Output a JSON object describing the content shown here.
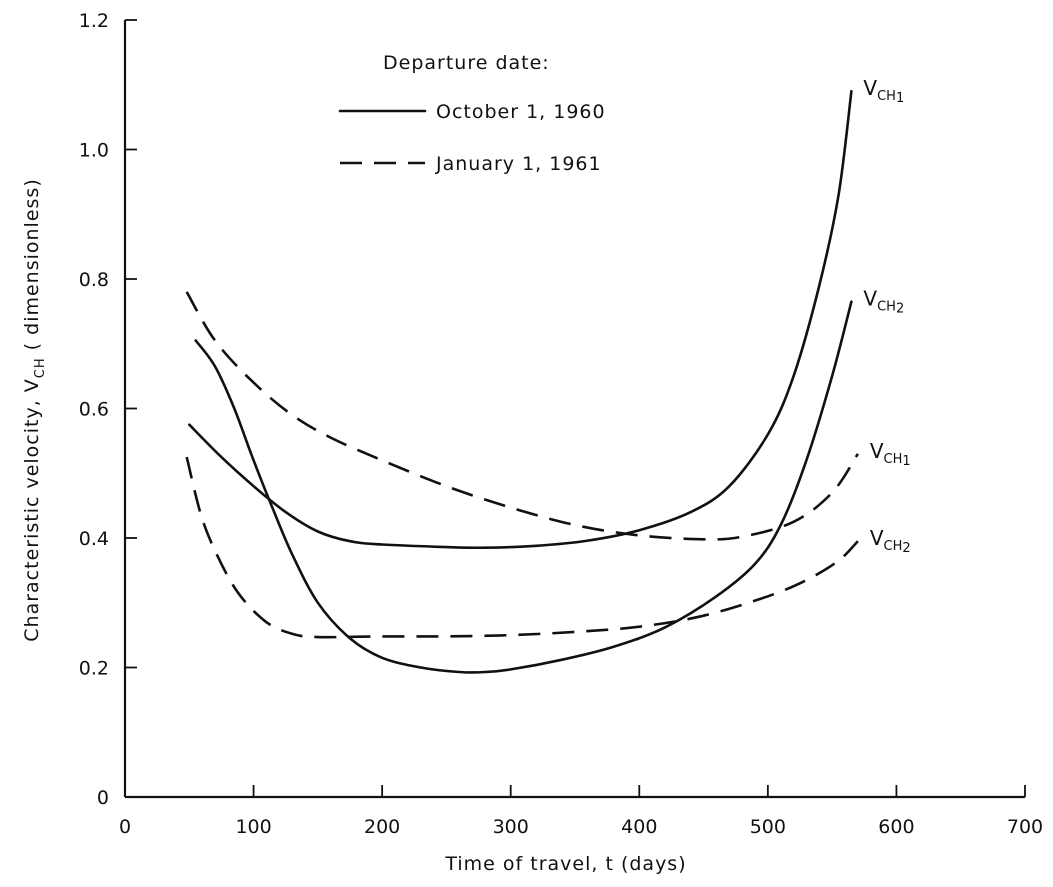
{
  "chart_data": {
    "type": "line",
    "xlabel": "Time of travel, t (days)",
    "ylabel": "Characteristic velocity, V",
    "ylabel_sub": "CH",
    "ylabel_suffix": " ( dimensionless)",
    "xlim": [
      0,
      700
    ],
    "ylim": [
      0,
      1.2
    ],
    "x_ticks": [
      0,
      100,
      200,
      300,
      400,
      500,
      600,
      700
    ],
    "x_tick_labels": [
      "0",
      "100",
      "200",
      "300",
      "400",
      "500",
      "600",
      "700"
    ],
    "y_ticks": [
      0,
      0.2,
      0.4,
      0.6,
      0.8,
      1.0,
      1.2
    ],
    "y_tick_labels": [
      "0",
      "0.2",
      "0.4",
      "0.6",
      "0.8",
      "1.0",
      "1.2"
    ],
    "grid": false,
    "legend": {
      "title": "Departure date:",
      "placement": "top-left",
      "entries": [
        {
          "label": "October 1, 1960",
          "style": "solid"
        },
        {
          "label": "January 1, 1961",
          "style": "dashed"
        }
      ]
    },
    "series": [
      {
        "legend": "October 1, 1960",
        "style": "solid",
        "label": "V",
        "label_sub": "CH",
        "label_subsub": "1",
        "points": [
          [
            50,
            0.575
          ],
          [
            75,
            0.525
          ],
          [
            100,
            0.48
          ],
          [
            125,
            0.44
          ],
          [
            150,
            0.41
          ],
          [
            175,
            0.395
          ],
          [
            200,
            0.39
          ],
          [
            250,
            0.386
          ],
          [
            280,
            0.385
          ],
          [
            320,
            0.388
          ],
          [
            360,
            0.396
          ],
          [
            400,
            0.412
          ],
          [
            440,
            0.44
          ],
          [
            470,
            0.48
          ],
          [
            500,
            0.56
          ],
          [
            520,
            0.65
          ],
          [
            540,
            0.79
          ],
          [
            555,
            0.93
          ],
          [
            565,
            1.09
          ]
        ]
      },
      {
        "legend": "October 1, 1960",
        "style": "solid",
        "label": "V",
        "label_sub": "CH",
        "label_subsub": "2",
        "points": [
          [
            55,
            0.705
          ],
          [
            70,
            0.665
          ],
          [
            85,
            0.6
          ],
          [
            100,
            0.52
          ],
          [
            115,
            0.445
          ],
          [
            130,
            0.375
          ],
          [
            150,
            0.3
          ],
          [
            175,
            0.245
          ],
          [
            200,
            0.215
          ],
          [
            230,
            0.2
          ],
          [
            260,
            0.193
          ],
          [
            280,
            0.193
          ],
          [
            300,
            0.197
          ],
          [
            340,
            0.212
          ],
          [
            380,
            0.232
          ],
          [
            420,
            0.262
          ],
          [
            460,
            0.31
          ],
          [
            490,
            0.36
          ],
          [
            510,
            0.42
          ],
          [
            530,
            0.52
          ],
          [
            550,
            0.65
          ],
          [
            565,
            0.765
          ]
        ]
      },
      {
        "legend": "January 1, 1961",
        "style": "dashed",
        "label": "V",
        "label_sub": "CH",
        "label_subsub": "1",
        "points": [
          [
            48,
            0.78
          ],
          [
            70,
            0.705
          ],
          [
            100,
            0.64
          ],
          [
            130,
            0.59
          ],
          [
            160,
            0.555
          ],
          [
            200,
            0.52
          ],
          [
            250,
            0.48
          ],
          [
            300,
            0.447
          ],
          [
            350,
            0.42
          ],
          [
            400,
            0.404
          ],
          [
            450,
            0.398
          ],
          [
            480,
            0.402
          ],
          [
            520,
            0.425
          ],
          [
            550,
            0.47
          ],
          [
            570,
            0.53
          ]
        ]
      },
      {
        "legend": "January 1, 1961",
        "style": "dashed",
        "label": "V",
        "label_sub": "CH",
        "label_subsub": "2",
        "points": [
          [
            48,
            0.525
          ],
          [
            60,
            0.43
          ],
          [
            75,
            0.36
          ],
          [
            90,
            0.31
          ],
          [
            110,
            0.27
          ],
          [
            130,
            0.252
          ],
          [
            150,
            0.247
          ],
          [
            200,
            0.248
          ],
          [
            250,
            0.248
          ],
          [
            300,
            0.25
          ],
          [
            350,
            0.255
          ],
          [
            400,
            0.263
          ],
          [
            450,
            0.28
          ],
          [
            500,
            0.31
          ],
          [
            530,
            0.335
          ],
          [
            555,
            0.365
          ],
          [
            570,
            0.395
          ]
        ]
      }
    ]
  }
}
